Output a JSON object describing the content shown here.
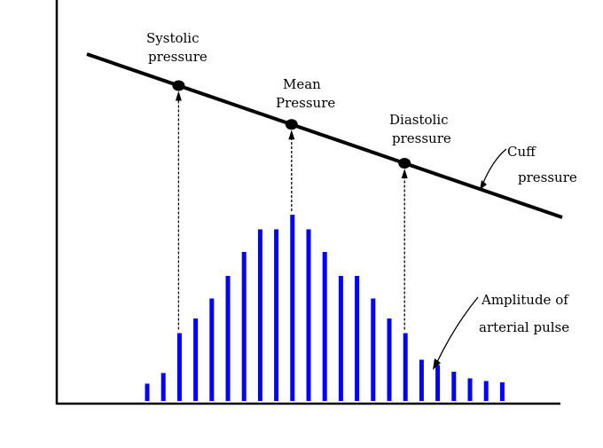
{
  "labels": {
    "systolic_line1": "Systolic",
    "systolic_line2": "pressure",
    "mean_line1": "Mean",
    "mean_line2": "Pressure",
    "diastolic_line1": "Diastolic",
    "diastolic_line2": "pressure",
    "cuff_line1": "Cuff",
    "cuff_line2": "pressure",
    "amplitude_line1": "Amplitude of",
    "amplitude_line2": "arterial pulse"
  },
  "colors": {
    "pulse_bars": "#0000ff",
    "lines": "#000000",
    "background": "#ffffff"
  },
  "pulse_amplitudes": [
    0.13,
    0.21,
    0.51,
    0.62,
    0.77,
    0.94,
    1.12,
    1.29,
    1.29,
    1.4,
    1.29,
    1.12,
    0.94,
    0.94,
    0.77,
    0.62,
    0.51,
    0.31,
    0.27,
    0.22,
    0.17,
    0.15,
    0.14
  ],
  "markers": {
    "systolic_pulse_index": 2,
    "mean_pulse_index": 9,
    "diastolic_pulse_index": 16
  }
}
